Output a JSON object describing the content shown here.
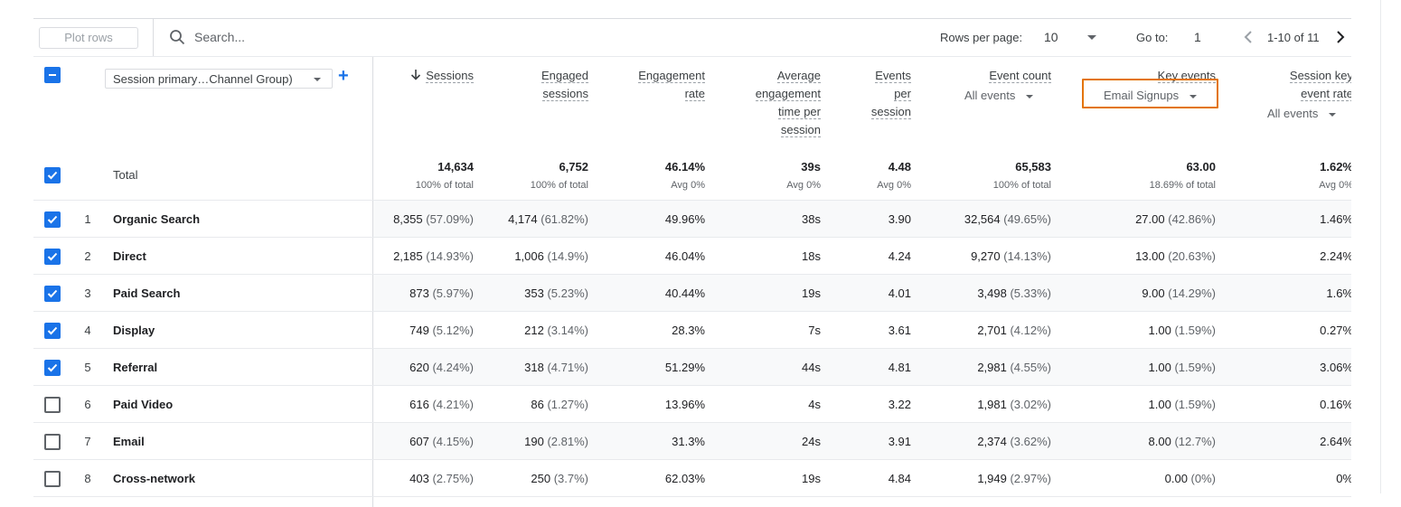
{
  "toolbar": {
    "plot_rows_label": "Plot rows",
    "search_placeholder": "Search...",
    "rows_per_page_label": "Rows per page:",
    "rows_per_page_value": "10",
    "go_to_label": "Go to:",
    "go_to_value": "1",
    "range_label": "1-10 of 11"
  },
  "header": {
    "dimension_select": "Session primary…Channel Group)",
    "columns": [
      {
        "lines": [
          "Sessions"
        ],
        "sorted": true
      },
      {
        "lines": [
          "Engaged",
          "sessions"
        ]
      },
      {
        "lines": [
          "Engagement",
          "rate"
        ]
      },
      {
        "lines": [
          "Average",
          "engagement",
          "time per",
          "session"
        ]
      },
      {
        "lines": [
          "Events",
          "per",
          "session"
        ]
      },
      {
        "lines": [
          "Event count"
        ],
        "sub": "All events"
      },
      {
        "lines": [
          "Key events"
        ],
        "sub": "Email Signups"
      },
      {
        "lines": [
          "Session key",
          "event rate"
        ],
        "sub": "All events"
      }
    ]
  },
  "totals": {
    "label": "Total",
    "values": [
      "14,634",
      "6,752",
      "46.14%",
      "39s",
      "4.48",
      "65,583",
      "63.00",
      "1.62%"
    ],
    "subs": [
      "100% of total",
      "100% of total",
      "Avg 0%",
      "Avg 0%",
      "Avg 0%",
      "100% of total",
      "18.69% of total",
      "Avg 0%"
    ]
  },
  "rows": [
    {
      "n": "1",
      "label": "Organic Search",
      "checked": true,
      "cells": [
        [
          "8,355",
          "(57.09%)"
        ],
        [
          "4,174",
          "(61.82%)"
        ],
        [
          "49.96%",
          ""
        ],
        [
          "38s",
          ""
        ],
        [
          "3.90",
          ""
        ],
        [
          "32,564",
          "(49.65%)"
        ],
        [
          "27.00",
          "(42.86%)"
        ],
        [
          "1.46%",
          ""
        ]
      ]
    },
    {
      "n": "2",
      "label": "Direct",
      "checked": true,
      "cells": [
        [
          "2,185",
          "(14.93%)"
        ],
        [
          "1,006",
          "(14.9%)"
        ],
        [
          "46.04%",
          ""
        ],
        [
          "18s",
          ""
        ],
        [
          "4.24",
          ""
        ],
        [
          "9,270",
          "(14.13%)"
        ],
        [
          "13.00",
          "(20.63%)"
        ],
        [
          "2.24%",
          ""
        ]
      ]
    },
    {
      "n": "3",
      "label": "Paid Search",
      "checked": true,
      "cells": [
        [
          "873",
          "(5.97%)"
        ],
        [
          "353",
          "(5.23%)"
        ],
        [
          "40.44%",
          ""
        ],
        [
          "19s",
          ""
        ],
        [
          "4.01",
          ""
        ],
        [
          "3,498",
          "(5.33%)"
        ],
        [
          "9.00",
          "(14.29%)"
        ],
        [
          "1.6%",
          ""
        ]
      ]
    },
    {
      "n": "4",
      "label": "Display",
      "checked": true,
      "cells": [
        [
          "749",
          "(5.12%)"
        ],
        [
          "212",
          "(3.14%)"
        ],
        [
          "28.3%",
          ""
        ],
        [
          "7s",
          ""
        ],
        [
          "3.61",
          ""
        ],
        [
          "2,701",
          "(4.12%)"
        ],
        [
          "1.00",
          "(1.59%)"
        ],
        [
          "0.27%",
          ""
        ]
      ]
    },
    {
      "n": "5",
      "label": "Referral",
      "checked": true,
      "cells": [
        [
          "620",
          "(4.24%)"
        ],
        [
          "318",
          "(4.71%)"
        ],
        [
          "51.29%",
          ""
        ],
        [
          "44s",
          ""
        ],
        [
          "4.81",
          ""
        ],
        [
          "2,981",
          "(4.55%)"
        ],
        [
          "1.00",
          "(1.59%)"
        ],
        [
          "3.06%",
          ""
        ]
      ]
    },
    {
      "n": "6",
      "label": "Paid Video",
      "checked": false,
      "cells": [
        [
          "616",
          "(4.21%)"
        ],
        [
          "86",
          "(1.27%)"
        ],
        [
          "13.96%",
          ""
        ],
        [
          "4s",
          ""
        ],
        [
          "3.22",
          ""
        ],
        [
          "1,981",
          "(3.02%)"
        ],
        [
          "1.00",
          "(1.59%)"
        ],
        [
          "0.16%",
          ""
        ]
      ]
    },
    {
      "n": "7",
      "label": "Email",
      "checked": false,
      "cells": [
        [
          "607",
          "(4.15%)"
        ],
        [
          "190",
          "(2.81%)"
        ],
        [
          "31.3%",
          ""
        ],
        [
          "24s",
          ""
        ],
        [
          "3.91",
          ""
        ],
        [
          "2,374",
          "(3.62%)"
        ],
        [
          "8.00",
          "(12.7%)"
        ],
        [
          "2.64%",
          ""
        ]
      ]
    },
    {
      "n": "8",
      "label": "Cross-network",
      "checked": false,
      "cells": [
        [
          "403",
          "(2.75%)"
        ],
        [
          "250",
          "(3.7%)"
        ],
        [
          "62.03%",
          ""
        ],
        [
          "19s",
          ""
        ],
        [
          "4.84",
          ""
        ],
        [
          "1,949",
          "(2.97%)"
        ],
        [
          "0.00",
          "(0%)"
        ],
        [
          "0%",
          ""
        ]
      ]
    }
  ]
}
